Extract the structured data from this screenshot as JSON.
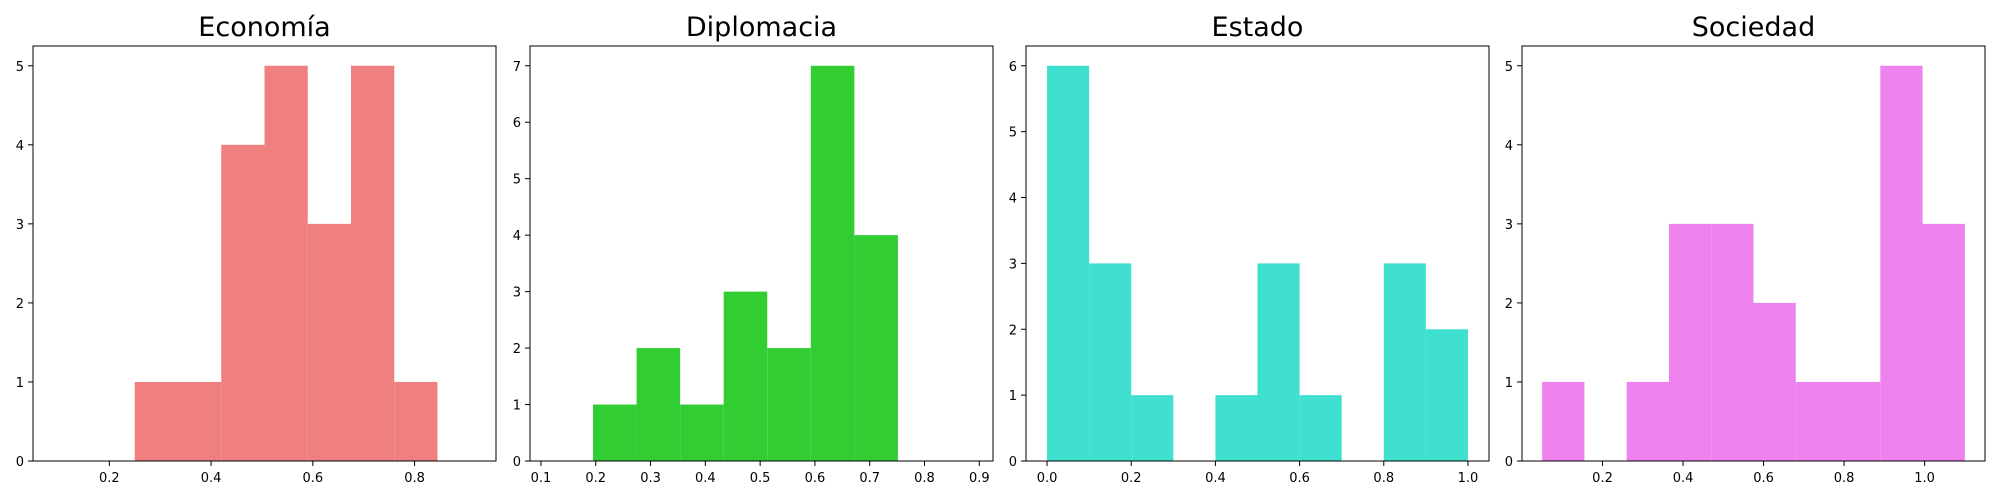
{
  "chart_data": [
    {
      "type": "bar",
      "title": "Economía",
      "color": "#f08080",
      "bins": [
        {
          "x0": 0.25,
          "x1": 0.335,
          "count": 1
        },
        {
          "x0": 0.335,
          "x1": 0.42,
          "count": 1
        },
        {
          "x0": 0.42,
          "x1": 0.505,
          "count": 4
        },
        {
          "x0": 0.505,
          "x1": 0.59,
          "count": 5
        },
        {
          "x0": 0.59,
          "x1": 0.675,
          "count": 3
        },
        {
          "x0": 0.675,
          "x1": 0.76,
          "count": 5
        },
        {
          "x0": 0.76,
          "x1": 0.845,
          "count": 1
        }
      ],
      "xlim": [
        0.05,
        0.96
      ],
      "ylim": [
        0,
        5.25
      ],
      "xticks": [
        "0.2",
        "0.4",
        "0.6",
        "0.8"
      ],
      "yticks": [
        "0",
        "1",
        "2",
        "3",
        "4",
        "5"
      ],
      "grid": false
    },
    {
      "type": "bar",
      "title": "Diplomacia",
      "color": "#32cd32",
      "bins": [
        {
          "x0": 0.195,
          "x1": 0.2745,
          "count": 1
        },
        {
          "x0": 0.2745,
          "x1": 0.354,
          "count": 2
        },
        {
          "x0": 0.354,
          "x1": 0.4335,
          "count": 1
        },
        {
          "x0": 0.4335,
          "x1": 0.513,
          "count": 3
        },
        {
          "x0": 0.513,
          "x1": 0.5925,
          "count": 2
        },
        {
          "x0": 0.5925,
          "x1": 0.672,
          "count": 7
        },
        {
          "x0": 0.672,
          "x1": 0.7515,
          "count": 4
        }
      ],
      "xlim": [
        0.08,
        0.925
      ],
      "ylim": [
        0,
        7.35
      ],
      "xticks": [
        "0.1",
        "0.2",
        "0.3",
        "0.4",
        "0.5",
        "0.6",
        "0.7",
        "0.8",
        "0.9"
      ],
      "yticks": [
        "0",
        "1",
        "2",
        "3",
        "4",
        "5",
        "6",
        "7"
      ],
      "grid": false
    },
    {
      "type": "bar",
      "title": "Estado",
      "color": "#40e0d0",
      "bins": [
        {
          "x0": 0.0,
          "x1": 0.1,
          "count": 6
        },
        {
          "x0": 0.1,
          "x1": 0.2,
          "count": 3
        },
        {
          "x0": 0.2,
          "x1": 0.3,
          "count": 1
        },
        {
          "x0": 0.3,
          "x1": 0.4,
          "count": 0
        },
        {
          "x0": 0.4,
          "x1": 0.5,
          "count": 1
        },
        {
          "x0": 0.5,
          "x1": 0.6,
          "count": 3
        },
        {
          "x0": 0.6,
          "x1": 0.7,
          "count": 1
        },
        {
          "x0": 0.7,
          "x1": 0.8,
          "count": 0
        },
        {
          "x0": 0.8,
          "x1": 0.9,
          "count": 3
        },
        {
          "x0": 0.9,
          "x1": 1.0,
          "count": 2
        }
      ],
      "xlim": [
        -0.05,
        1.05
      ],
      "ylim": [
        0,
        6.3
      ],
      "xticks": [
        "0.0",
        "0.2",
        "0.4",
        "0.6",
        "0.8",
        "1.0"
      ],
      "yticks": [
        "0",
        "1",
        "2",
        "3",
        "4",
        "5",
        "6"
      ],
      "grid": false
    },
    {
      "type": "bar",
      "title": "Sociedad",
      "color": "#ee82ee",
      "bins": [
        {
          "x0": 0.05,
          "x1": 0.155,
          "count": 1
        },
        {
          "x0": 0.155,
          "x1": 0.26,
          "count": 0
        },
        {
          "x0": 0.26,
          "x1": 0.365,
          "count": 1
        },
        {
          "x0": 0.365,
          "x1": 0.47,
          "count": 3
        },
        {
          "x0": 0.47,
          "x1": 0.575,
          "count": 3
        },
        {
          "x0": 0.575,
          "x1": 0.68,
          "count": 2
        },
        {
          "x0": 0.68,
          "x1": 0.785,
          "count": 1
        },
        {
          "x0": 0.785,
          "x1": 0.89,
          "count": 1
        },
        {
          "x0": 0.89,
          "x1": 0.995,
          "count": 5
        },
        {
          "x0": 0.995,
          "x1": 1.1,
          "count": 3
        }
      ],
      "xlim": [
        0.0,
        1.15
      ],
      "ylim": [
        0,
        5.25
      ],
      "xticks": [
        "0.2",
        "0.4",
        "0.6",
        "0.8",
        "1.0"
      ],
      "yticks": [
        "0",
        "1",
        "2",
        "3",
        "4",
        "5"
      ],
      "grid": false
    }
  ]
}
